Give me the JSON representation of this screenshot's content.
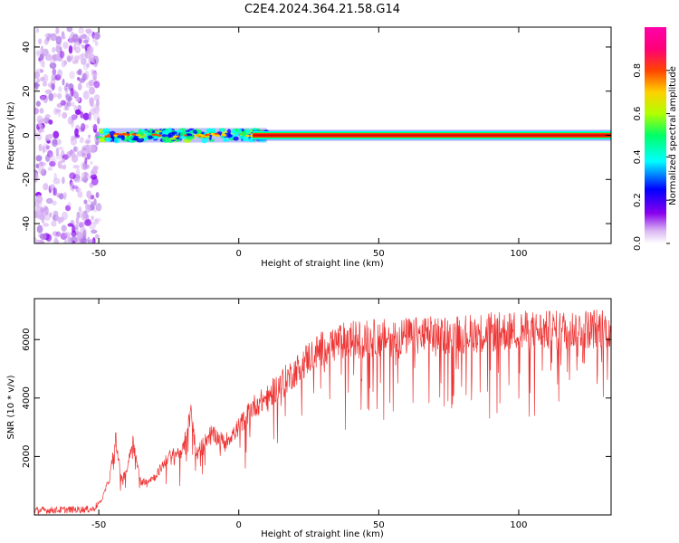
{
  "title": "C2E4.2024.364.21.58.G14",
  "colors": {
    "snr_line": "#ee3333",
    "colormap": [
      "#ffffff",
      "#d9b3f2",
      "#8800ee",
      "#0000ff",
      "#00ffff",
      "#00ff66",
      "#b0ff00",
      "#ffd000",
      "#ff4400",
      "#ff0077",
      "#ff00aa"
    ]
  },
  "chart_data": [
    {
      "type": "heatmap",
      "xlabel": "Height of straight line (km)",
      "ylabel": "Frequency (Hz)",
      "xlim": [
        -73,
        133
      ],
      "ylim": [
        -49,
        49
      ],
      "xticks": [
        -50,
        0,
        50,
        100
      ],
      "yticks": [
        -40,
        -20,
        0,
        20,
        40
      ],
      "colorbar": {
        "label": "Normalized spectral amplitude",
        "range": [
          0,
          1
        ],
        "ticks": [
          "0.0",
          "0.2",
          "0.4",
          "0.6",
          "0.8"
        ]
      },
      "features": {
        "noise_region_x": [
          -73,
          -50
        ],
        "noise_freq_range": [
          -49,
          49
        ],
        "signal_frequency": 0,
        "scattered_signal_x": [
          -50,
          10
        ],
        "strong_line_x": [
          5,
          133
        ]
      }
    },
    {
      "type": "line",
      "xlabel": "Height of straight line (km)",
      "ylabel": "SNR (10 * v/v)",
      "xlim": [
        -73,
        133
      ],
      "ylim": [
        0,
        7400
      ],
      "xticks": [
        -50,
        0,
        50,
        100
      ],
      "yticks": [
        2000,
        4000,
        6000
      ],
      "series": [
        {
          "x": [
            -73,
            -52,
            -49,
            -46,
            -44,
            -42,
            -40,
            -38,
            -35,
            -30,
            -25,
            -20,
            -17,
            -15,
            -10,
            -5,
            0,
            5,
            10,
            15,
            20,
            25,
            30,
            35,
            40,
            50,
            60,
            70,
            80,
            90,
            100,
            110,
            120,
            133
          ],
          "values": [
            150,
            200,
            500,
            1300,
            2700,
            1200,
            1500,
            2600,
            1100,
            1300,
            2000,
            2200,
            3500,
            2100,
            2800,
            2500,
            3000,
            3700,
            4000,
            4500,
            4900,
            5400,
            5700,
            5900,
            6000,
            6050,
            6100,
            6150,
            6200,
            6250,
            6300,
            6300,
            6350,
            6400
          ]
        }
      ]
    }
  ]
}
